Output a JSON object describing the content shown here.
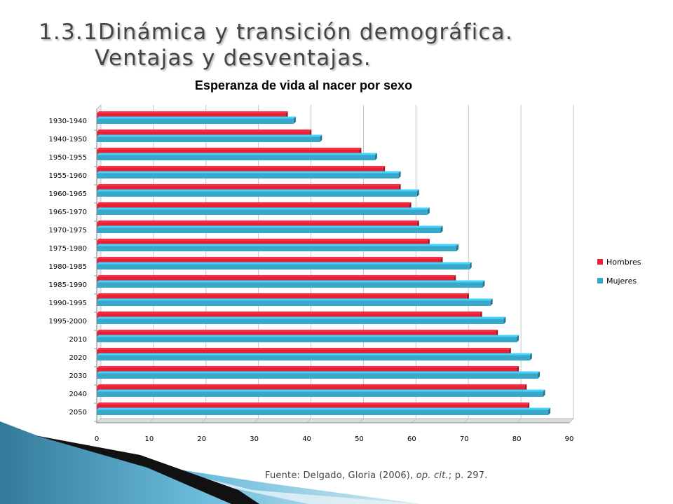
{
  "slide": {
    "title_line1": "1.3.1Dinámica y transición demográfica.",
    "title_line2": "Ventajas y desventajas."
  },
  "source": {
    "prefix": "Fuente: Delgado, Gloria (2006), ",
    "italic": "op. cit.",
    "suffix": "; p. 297."
  },
  "colors": {
    "hombres": "#e32236",
    "mujeres": "#37a8c9",
    "grid": "#c4c4c4"
  },
  "chart_data": {
    "type": "bar",
    "orientation": "horizontal",
    "title": "Esperanza de vida al nacer por sexo",
    "categories": [
      "1930-1940",
      "1940-1950",
      "1950-1955",
      "1955-1960",
      "1960-1965",
      "1965-1970",
      "1970-1975",
      "1975-1980",
      "1980-1985",
      "1985-1990",
      "1990-1995",
      "1995-2000",
      "2010",
      "2020",
      "2030",
      "2040",
      "2050"
    ],
    "series": [
      {
        "name": "Hombres",
        "values": [
          36,
          40.5,
          50,
          54.5,
          57.5,
          59.5,
          61,
          63,
          65.5,
          68,
          70.5,
          73,
          76,
          78.5,
          80,
          81.5,
          82
        ]
      },
      {
        "name": "Mujeres",
        "values": [
          37.5,
          42.5,
          53,
          57.5,
          61,
          63,
          65.5,
          68.5,
          71,
          73.5,
          75,
          77.5,
          80,
          82.5,
          84,
          85,
          86
        ]
      }
    ],
    "xlim": [
      0,
      90
    ],
    "xticks": [
      "0",
      "10",
      "20",
      "30",
      "40",
      "50",
      "60",
      "70",
      "80",
      "90"
    ],
    "grid": true,
    "legend_position": "right"
  }
}
